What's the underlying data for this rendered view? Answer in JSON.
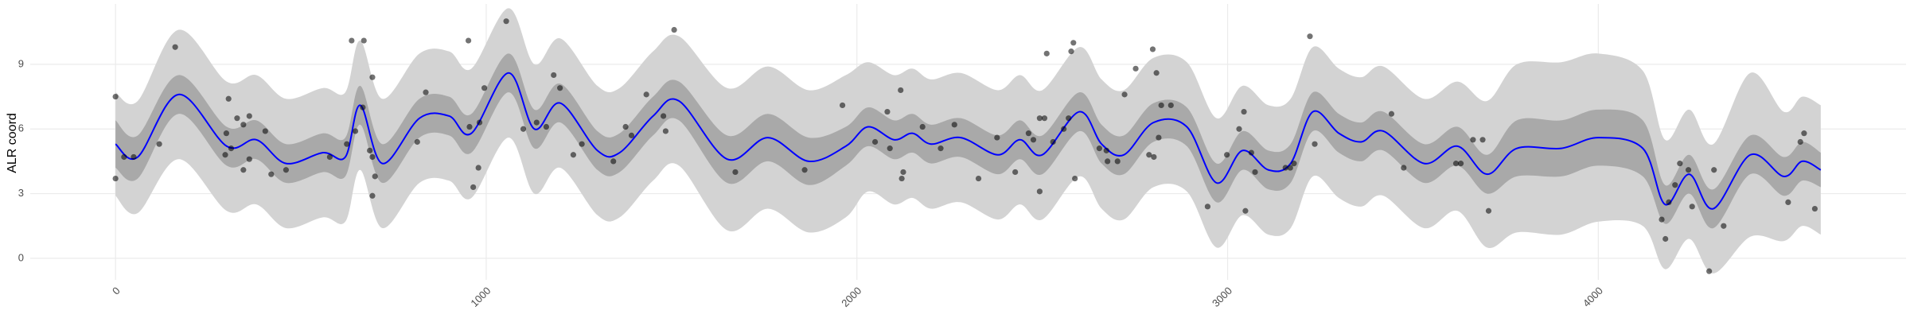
{
  "chart_data": {
    "type": "line",
    "y_label": "ALR coord",
    "xlim": [
      -230,
      4830
    ],
    "xticks": [
      0,
      1000,
      2000,
      3000,
      4000
    ],
    "ylim": [
      -1,
      11.8
    ],
    "yticks": [
      0,
      3,
      6,
      9
    ],
    "grid": true,
    "x": [
      0,
      60,
      170,
      300,
      380,
      460,
      560,
      620,
      660,
      720,
      820,
      900,
      960,
      1060,
      1130,
      1200,
      1300,
      1360,
      1450,
      1520,
      1650,
      1760,
      1870,
      1970,
      2030,
      2100,
      2150,
      2200,
      2280,
      2380,
      2440,
      2500,
      2600,
      2660,
      2720,
      2800,
      2890,
      2970,
      3040,
      3110,
      3170,
      3230,
      3300,
      3360,
      3420,
      3530,
      3620,
      3700,
      3780,
      3900,
      4000,
      4120,
      4180,
      4245,
      4310,
      4410,
      4500,
      4550,
      4600
    ],
    "bands": [
      {
        "color": "#d3d3d3",
        "lower": [
          2.9,
          2.1,
          4.6,
          2.2,
          2.5,
          1.4,
          1.9,
          1.7,
          4.1,
          1.4,
          3.5,
          3.6,
          2.8,
          5.6,
          3.0,
          4.2,
          2.0,
          1.9,
          3.6,
          4.3,
          1.3,
          2.3,
          1.2,
          1.9,
          3.1,
          2.5,
          2.8,
          2.3,
          2.6,
          1.8,
          2.5,
          1.8,
          3.8,
          2.3,
          1.8,
          3.3,
          3.1,
          0.5,
          2.0,
          1.1,
          1.4,
          3.8,
          2.8,
          2.4,
          2.9,
          1.4,
          2.2,
          0.5,
          1.2,
          1.1,
          1.7,
          1.5,
          -0.5,
          0.9,
          -0.7,
          1.0,
          0.8,
          1.5,
          1.1
        ],
        "upper": [
          7.7,
          7.3,
          10.6,
          8.2,
          8.5,
          7.4,
          7.9,
          7.7,
          10.1,
          7.4,
          9.5,
          9.6,
          8.8,
          11.6,
          9.0,
          10.2,
          8.0,
          7.9,
          9.6,
          10.3,
          7.9,
          8.9,
          7.8,
          8.5,
          9.1,
          8.5,
          8.8,
          8.3,
          8.6,
          7.8,
          8.5,
          7.8,
          9.8,
          8.3,
          7.8,
          9.3,
          9.1,
          6.5,
          8.0,
          7.1,
          7.4,
          9.8,
          8.8,
          8.4,
          8.9,
          7.4,
          8.2,
          7.3,
          9.0,
          9.1,
          9.5,
          8.7,
          5.5,
          6.9,
          5.3,
          8.6,
          6.8,
          7.5,
          7.1
        ]
      },
      {
        "color": "#a9a9a9",
        "lower": [
          4.2,
          3.7,
          6.7,
          4.3,
          4.6,
          3.5,
          4.0,
          3.8,
          6.2,
          3.5,
          5.6,
          5.7,
          4.9,
          7.7,
          5.1,
          6.3,
          4.1,
          4.0,
          5.7,
          6.4,
          3.5,
          4.5,
          3.4,
          4.3,
          5.2,
          4.6,
          4.9,
          4.4,
          4.7,
          3.9,
          4.6,
          3.9,
          5.9,
          4.4,
          3.9,
          5.4,
          5.2,
          2.6,
          4.1,
          3.2,
          3.5,
          5.9,
          4.9,
          4.5,
          5.0,
          3.5,
          4.3,
          3.0,
          3.8,
          3.8,
          4.3,
          3.8,
          1.6,
          3.0,
          1.4,
          3.9,
          2.9,
          3.6,
          3.3
        ],
        "upper": [
          6.4,
          5.7,
          8.5,
          6.1,
          6.4,
          5.3,
          5.8,
          5.6,
          8.0,
          5.3,
          7.4,
          7.5,
          6.7,
          9.5,
          6.9,
          8.1,
          5.9,
          5.8,
          7.5,
          8.2,
          5.7,
          6.7,
          5.6,
          6.1,
          7.0,
          6.4,
          6.7,
          6.2,
          6.5,
          5.7,
          6.4,
          5.7,
          7.7,
          6.2,
          5.7,
          7.2,
          7.0,
          4.4,
          5.9,
          5.0,
          5.3,
          7.7,
          6.7,
          6.3,
          6.8,
          5.3,
          6.1,
          4.8,
          6.4,
          6.4,
          6.9,
          6.4,
          3.4,
          4.8,
          3.2,
          5.7,
          4.7,
          5.4,
          4.9
        ]
      }
    ],
    "series": [
      {
        "color": "#0000ff",
        "values": [
          5.3,
          4.7,
          7.6,
          5.2,
          5.5,
          4.4,
          4.9,
          4.7,
          7.1,
          4.4,
          6.5,
          6.6,
          5.8,
          8.6,
          6.0,
          7.2,
          5.0,
          4.9,
          6.6,
          7.3,
          4.6,
          5.6,
          4.5,
          5.2,
          6.1,
          5.5,
          5.8,
          5.3,
          5.6,
          4.8,
          5.5,
          4.8,
          6.8,
          5.3,
          4.8,
          6.3,
          6.1,
          3.5,
          5.0,
          4.1,
          4.4,
          6.8,
          5.8,
          5.4,
          5.9,
          4.4,
          5.2,
          3.9,
          5.1,
          5.1,
          5.6,
          5.1,
          2.5,
          3.9,
          2.3,
          4.8,
          3.8,
          4.5,
          4.1
        ]
      }
    ],
    "points": {
      "color": "#000000",
      "x": [
        0,
        0,
        23,
        49,
        118,
        161,
        299,
        305,
        328,
        345,
        361,
        296,
        312,
        345,
        361,
        404,
        420,
        460,
        578,
        624,
        637,
        670,
        647,
        667,
        686,
        693,
        693,
        700,
        693,
        814,
        837,
        952,
        965,
        979,
        955,
        982,
        995,
        1054,
        1100,
        1136,
        1162,
        1182,
        1199,
        1235,
        1258,
        1343,
        1376,
        1392,
        1432,
        1478,
        1484,
        1507,
        1672,
        1859,
        1961,
        2049,
        2082,
        2118,
        2125,
        2121,
        2089,
        2177,
        2226,
        2263,
        2328,
        2378,
        2427,
        2463,
        2476,
        2493,
        2506,
        2493,
        2512,
        2529,
        2558,
        2578,
        2584,
        2571,
        2588,
        2654,
        2673,
        2676,
        2703,
        2722,
        2752,
        2788,
        2801,
        2798,
        2814,
        2821,
        2847,
        2808,
        2946,
        2998,
        3031,
        3044,
        3048,
        3064,
        3074,
        3156,
        3169,
        3179,
        3222,
        3235,
        3442,
        3475,
        3616,
        3629,
        3662,
        3688,
        3704,
        4171,
        4181,
        4190,
        4207,
        4220,
        4243,
        4253,
        4299,
        4312,
        4338,
        4512,
        4545,
        4555,
        4584
      ],
      "y": [
        7.5,
        3.7,
        4.7,
        4.7,
        5.3,
        9.8,
        5.8,
        7.4,
        6.5,
        6.2,
        6.6,
        4.8,
        5.1,
        4.1,
        4.6,
        5.9,
        3.9,
        4.1,
        4.7,
        5.3,
        10.1,
        10.1,
        5.9,
        7.0,
        5.0,
        4.7,
        2.9,
        3.8,
        8.4,
        5.4,
        7.7,
        10.1,
        3.3,
        4.2,
        6.1,
        6.3,
        7.9,
        11.0,
        6.0,
        6.3,
        6.1,
        8.5,
        7.9,
        4.8,
        5.3,
        4.5,
        6.1,
        5.7,
        7.6,
        6.6,
        5.9,
        10.6,
        4.0,
        4.1,
        7.1,
        5.4,
        6.8,
        7.8,
        4.0,
        3.7,
        5.1,
        6.1,
        5.1,
        6.2,
        3.7,
        5.6,
        4.0,
        5.8,
        5.5,
        6.5,
        6.5,
        3.1,
        9.5,
        5.4,
        6.0,
        9.6,
        10.0,
        6.5,
        3.7,
        5.1,
        5.0,
        4.5,
        4.5,
        7.6,
        8.8,
        4.8,
        4.7,
        9.7,
        5.6,
        7.1,
        7.1,
        8.6,
        2.4,
        4.8,
        6.0,
        6.8,
        2.2,
        4.9,
        4.0,
        4.2,
        4.2,
        4.4,
        10.3,
        5.3,
        6.7,
        4.2,
        4.4,
        4.4,
        5.5,
        5.5,
        2.2,
        1.8,
        0.9,
        2.6,
        3.4,
        4.4,
        4.1,
        2.4,
        -0.6,
        4.1,
        1.5,
        2.6,
        5.4,
        5.8,
        2.3
      ]
    }
  }
}
